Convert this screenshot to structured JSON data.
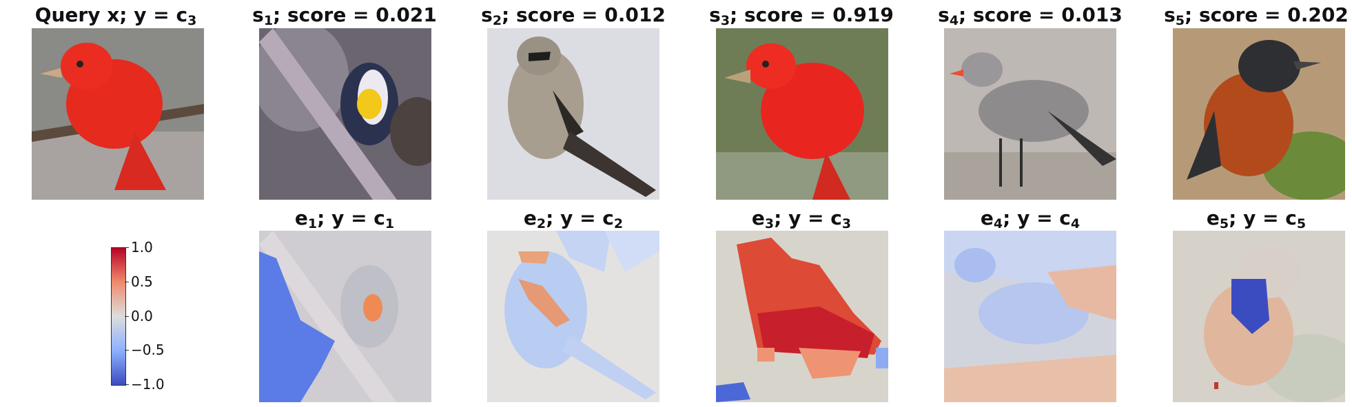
{
  "query": {
    "name": "Query x",
    "label": "c",
    "label_sub": "3"
  },
  "candidates": [
    {
      "s_sub": "1",
      "score": "0.021",
      "e_sub": "1",
      "c_sub": "1",
      "bird_color": "#2a3250",
      "bg": "#6b6570"
    },
    {
      "s_sub": "2",
      "score": "0.012",
      "e_sub": "2",
      "c_sub": "2",
      "bird_color": "#a89e90",
      "bg": "#dcdde3"
    },
    {
      "s_sub": "3",
      "score": "0.919",
      "e_sub": "3",
      "c_sub": "3",
      "bird_color": "#e8261f",
      "bg": "#6f7d57"
    },
    {
      "s_sub": "4",
      "score": "0.013",
      "e_sub": "4",
      "c_sub": "4",
      "bird_color": "#8e8b8d",
      "bg": "#bdb8b3"
    },
    {
      "s_sub": "5",
      "score": "0.202",
      "e_sub": "5",
      "c_sub": "5",
      "bird_color": "#b24a1c",
      "bg": "#b69a78"
    }
  ],
  "strings": {
    "score_label": "score =",
    "y_label": "y ="
  },
  "colorbar": {
    "ticks": [
      "1.0",
      "0.5",
      "0.0",
      "−0.5",
      "−1.0"
    ],
    "min": -1.0,
    "max": 1.0,
    "colormap": "coolwarm"
  },
  "colors": {
    "query_bird": "#e62a1e",
    "query_bg": "#8a8a86"
  }
}
